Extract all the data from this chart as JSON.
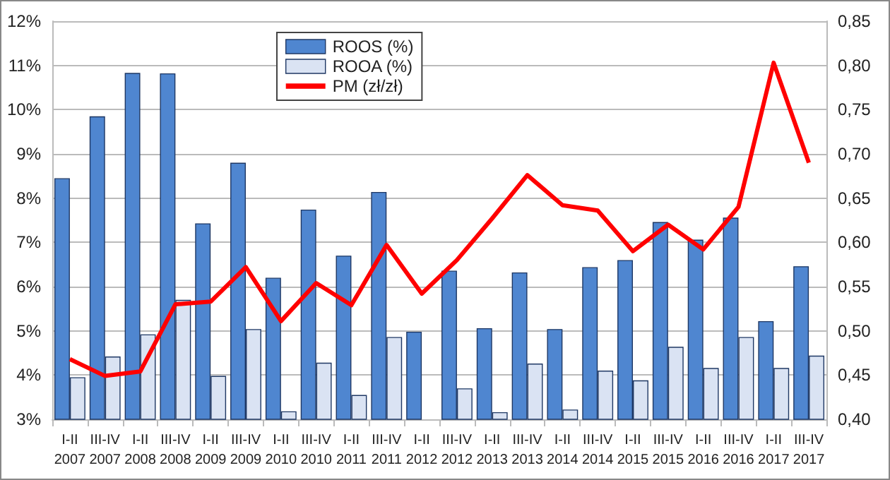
{
  "chart_data": {
    "type": "bar",
    "categories": [
      "I-II\n2007",
      "III-IV\n2007",
      "I-II\n2008",
      "III-IV\n2008",
      "I-II\n2009",
      "III-IV\n2009",
      "I-II\n2010",
      "III-IV\n2010",
      "I-II\n2011",
      "III-IV\n2011",
      "I-II\n2012",
      "III-IV\n2012",
      "I-II\n2013",
      "III-IV\n2013",
      "I-II\n2014",
      "III-IV\n2014",
      "I-II\n2015",
      "III-IV\n2015",
      "I-II\n2016",
      "III-IV\n2016",
      "I-II\n2017",
      "III-IV\n2017"
    ],
    "series": [
      {
        "name": "ROOS (%)",
        "color": "#4f86d0",
        "values": [
          8.45,
          9.85,
          10.83,
          10.82,
          7.43,
          8.8,
          6.2,
          7.74,
          6.7,
          8.14,
          4.98,
          6.36,
          5.06,
          6.32,
          5.04,
          6.44,
          6.6,
          7.46,
          7.06,
          7.56,
          5.22,
          6.46
        ]
      },
      {
        "name": "ROOA (%)",
        "color": "#dae3f3",
        "values": [
          3.95,
          4.42,
          4.92,
          5.7,
          3.98,
          5.04,
          3.18,
          4.28,
          3.55,
          4.86,
          null,
          3.7,
          3.16,
          4.26,
          3.22,
          4.1,
          3.88,
          4.64,
          4.16,
          4.86,
          4.16,
          4.44
        ]
      },
      {
        "name": "PM (zł/zł)",
        "type": "line",
        "axis": "y2",
        "color": "#ff0000",
        "values": [
          0.468,
          0.449,
          0.454,
          0.53,
          0.533,
          0.572,
          0.511,
          0.554,
          0.529,
          0.597,
          0.542,
          0.58,
          0.627,
          0.676,
          0.642,
          0.636,
          0.59,
          0.62,
          0.592,
          0.64,
          0.803,
          0.69
        ]
      }
    ],
    "ylim": [
      3,
      12
    ],
    "yticks": [
      {
        "value": 3,
        "label": "3%"
      },
      {
        "value": 4,
        "label": "4%"
      },
      {
        "value": 5,
        "label": "5%"
      },
      {
        "value": 6,
        "label": "6%"
      },
      {
        "value": 7,
        "label": "7%"
      },
      {
        "value": 8,
        "label": "8%"
      },
      {
        "value": 9,
        "label": "9%"
      },
      {
        "value": 10,
        "label": "10%"
      },
      {
        "value": 11,
        "label": "11%"
      },
      {
        "value": 12,
        "label": "12%"
      }
    ],
    "y2lim": [
      0.4,
      0.85
    ],
    "y2ticks": [
      {
        "value": 0.4,
        "label": "0,40"
      },
      {
        "value": 0.45,
        "label": "0,45"
      },
      {
        "value": 0.5,
        "label": "0,50"
      },
      {
        "value": 0.55,
        "label": "0,55"
      },
      {
        "value": 0.6,
        "label": "0,60"
      },
      {
        "value": 0.65,
        "label": "0,65"
      },
      {
        "value": 0.7,
        "label": "0,70"
      },
      {
        "value": 0.75,
        "label": "0,75"
      },
      {
        "value": 0.8,
        "label": "0,80"
      },
      {
        "value": 0.85,
        "label": "0,85"
      }
    ],
    "grid": "y",
    "legend": "top",
    "marker": "none"
  }
}
